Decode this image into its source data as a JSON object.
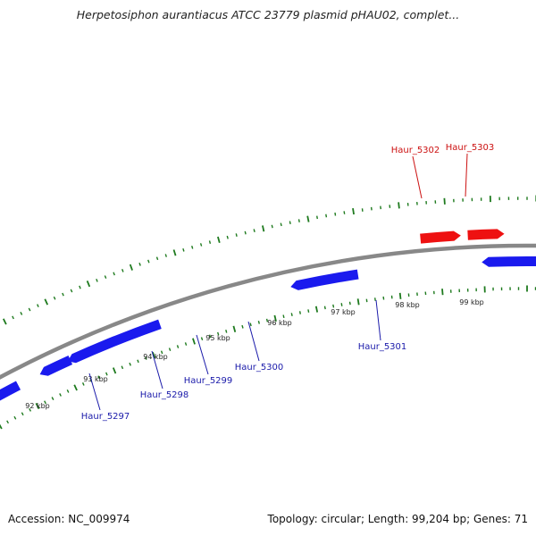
{
  "title": "Herpetosiphon aurantiacus ATCC 23779 plasmid pHAU02, complet...",
  "footer": {
    "accession": "Accession: NC_009974",
    "summary": "Topology: circular; Length: 99,204 bp; Genes: 71"
  },
  "colors": {
    "forward_gene": "#ee1111",
    "reverse_gene": "#1a1aee",
    "highlight": "#f2e9a6",
    "tick": "#1e7a1e",
    "backbone": "#888888",
    "reverse_label": "#1a1aaa",
    "forward_label": "#cc1111"
  },
  "map": {
    "scale_labels": [
      "92 kbp",
      "93 kbp",
      "94 kbp",
      "95 kbp",
      "96 kbp",
      "97 kbp",
      "98 kbp",
      "99 kbp"
    ],
    "genes": [
      {
        "label": "Haur_5297",
        "strand": "reverse"
      },
      {
        "label": "Haur_5298",
        "strand": "reverse"
      },
      {
        "label": "Haur_5299",
        "strand": "reverse"
      },
      {
        "label": "Haur_5300",
        "strand": "reverse"
      },
      {
        "label": "Haur_5301",
        "strand": "reverse"
      },
      {
        "label": "Haur_5302",
        "strand": "forward"
      },
      {
        "label": "Haur_5303",
        "strand": "forward"
      }
    ]
  }
}
